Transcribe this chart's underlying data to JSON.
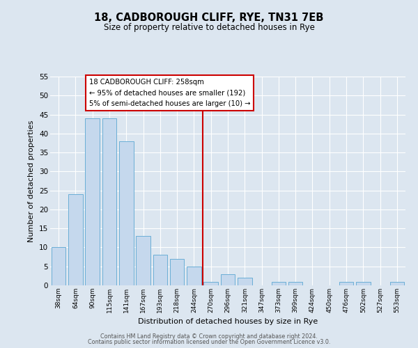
{
  "title": "18, CADBOROUGH CLIFF, RYE, TN31 7EB",
  "subtitle": "Size of property relative to detached houses in Rye",
  "xlabel": "Distribution of detached houses by size in Rye",
  "ylabel": "Number of detached properties",
  "bar_labels": [
    "38sqm",
    "64sqm",
    "90sqm",
    "115sqm",
    "141sqm",
    "167sqm",
    "193sqm",
    "218sqm",
    "244sqm",
    "270sqm",
    "296sqm",
    "321sqm",
    "347sqm",
    "373sqm",
    "399sqm",
    "424sqm",
    "450sqm",
    "476sqm",
    "502sqm",
    "527sqm",
    "553sqm"
  ],
  "bar_values": [
    10,
    24,
    44,
    44,
    38,
    13,
    8,
    7,
    5,
    1,
    3,
    2,
    0,
    1,
    1,
    0,
    0,
    1,
    1,
    0,
    1
  ],
  "bar_color": "#c5d8ed",
  "bar_edge_color": "#6aaed6",
  "vline_color": "#cc0000",
  "annotation_title": "18 CADBOROUGH CLIFF: 258sqm",
  "annotation_line1": "← 95% of detached houses are smaller (192)",
  "annotation_line2": "5% of semi-detached houses are larger (10) →",
  "annotation_box_color": "#ffffff",
  "annotation_box_edge": "#cc0000",
  "ylim": [
    0,
    55
  ],
  "yticks": [
    0,
    5,
    10,
    15,
    20,
    25,
    30,
    35,
    40,
    45,
    50,
    55
  ],
  "background_color": "#dce6f0",
  "plot_background": "#dce6f0",
  "footer_line1": "Contains HM Land Registry data © Crown copyright and database right 2024.",
  "footer_line2": "Contains public sector information licensed under the Open Government Licence v3.0."
}
